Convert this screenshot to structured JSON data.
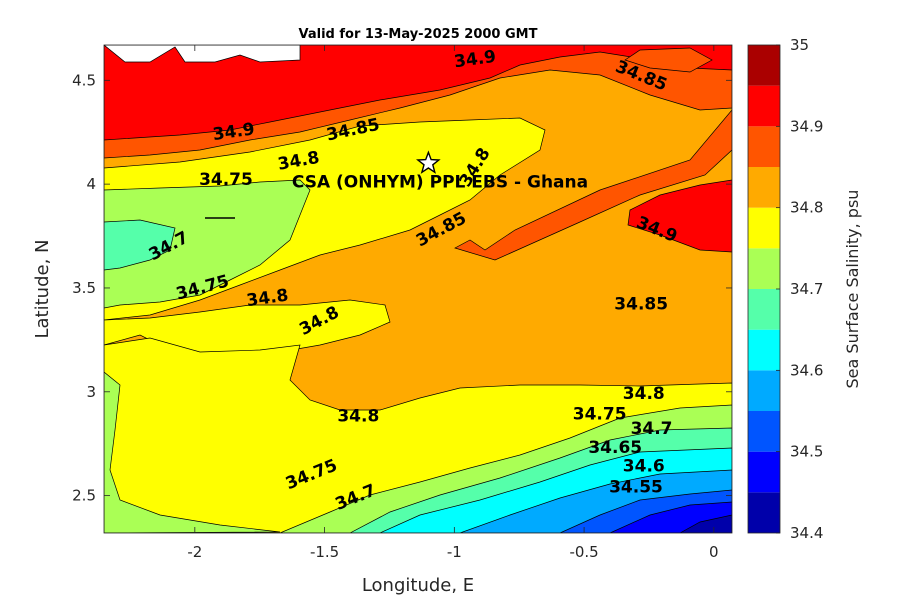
{
  "chart_data": {
    "type": "heatmap",
    "title": "Valid for 13-May-2025 2000 GMT",
    "xlabel": "Longitude, E",
    "ylabel": "Latitude, N",
    "colorbar_label": "Sea Surface Salinity, psu",
    "xlim": [
      -2.35,
      0.07
    ],
    "ylim": [
      2.32,
      4.67
    ],
    "xticks": [
      -2,
      -1.5,
      -1,
      -0.5,
      0
    ],
    "xtick_labels": [
      "-2",
      "-1.5",
      "-1",
      "-0.5",
      "0"
    ],
    "yticks": [
      2.5,
      3,
      3.5,
      4,
      4.5
    ],
    "ytick_labels": [
      "2.5",
      "3",
      "3.5",
      "4",
      "4.5"
    ],
    "color_levels": [
      34.4,
      34.45,
      34.5,
      34.55,
      34.6,
      34.65,
      34.7,
      34.75,
      34.8,
      34.85,
      34.9,
      34.95,
      35
    ],
    "colorbar_ticks": [
      34.4,
      34.5,
      34.6,
      34.7,
      34.8,
      34.9,
      35
    ],
    "colorbar_tick_labels": [
      "34.4",
      "34.5",
      "34.6",
      "34.7",
      "34.8",
      "34.9",
      "35"
    ],
    "colors": [
      "#0000aa",
      "#0000ff",
      "#0055ff",
      "#00aaff",
      "#00ffff",
      "#55ffaa",
      "#aaff55",
      "#ffff00",
      "#ffaa00",
      "#ff5500",
      "#ff0000",
      "#aa0000"
    ],
    "site": {
      "label": "CSA (ONHYM) PPL EBS  - Ghana",
      "lon": -1.1,
      "lat": 4.1,
      "marker": "star"
    },
    "contour_labels": [
      {
        "text": "34.9",
        "lon": -0.92,
        "lat": 4.6,
        "angle": -8
      },
      {
        "text": "34.85",
        "lon": -0.28,
        "lat": 4.52,
        "angle": 22
      },
      {
        "text": "34.9",
        "lon": -1.85,
        "lat": 4.25,
        "angle": -8
      },
      {
        "text": "34.85",
        "lon": -1.39,
        "lat": 4.26,
        "angle": -12
      },
      {
        "text": "34.8",
        "lon": -1.6,
        "lat": 4.11,
        "angle": -10
      },
      {
        "text": "34.75",
        "lon": -1.88,
        "lat": 4.02,
        "angle": 0
      },
      {
        "text": "34.8",
        "lon": -0.92,
        "lat": 4.08,
        "angle": -58
      },
      {
        "text": "34.85",
        "lon": -1.05,
        "lat": 3.78,
        "angle": -28
      },
      {
        "text": "34.9",
        "lon": -0.22,
        "lat": 3.78,
        "angle": 22
      },
      {
        "text": "34.7",
        "lon": -2.1,
        "lat": 3.7,
        "angle": -28
      },
      {
        "text": "34.75",
        "lon": -1.97,
        "lat": 3.5,
        "angle": -15
      },
      {
        "text": "34.8",
        "lon": -1.72,
        "lat": 3.45,
        "angle": -8
      },
      {
        "text": "34.8",
        "lon": -1.52,
        "lat": 3.34,
        "angle": -28
      },
      {
        "text": "34.85",
        "lon": -0.28,
        "lat": 3.42,
        "angle": 0
      },
      {
        "text": "34.8",
        "lon": -0.27,
        "lat": 2.99,
        "angle": 0
      },
      {
        "text": "34.8",
        "lon": -1.37,
        "lat": 2.88,
        "angle": 0
      },
      {
        "text": "34.75",
        "lon": -0.44,
        "lat": 2.89,
        "angle": 0
      },
      {
        "text": "34.7",
        "lon": -0.24,
        "lat": 2.82,
        "angle": 0
      },
      {
        "text": "34.65",
        "lon": -0.38,
        "lat": 2.73,
        "angle": 0
      },
      {
        "text": "34.6",
        "lon": -0.27,
        "lat": 2.64,
        "angle": 0
      },
      {
        "text": "34.55",
        "lon": -0.3,
        "lat": 2.54,
        "angle": 0
      },
      {
        "text": "34.75",
        "lon": -1.55,
        "lat": 2.6,
        "angle": -22
      },
      {
        "text": "34.7",
        "lon": -1.38,
        "lat": 2.49,
        "angle": -22
      }
    ]
  }
}
